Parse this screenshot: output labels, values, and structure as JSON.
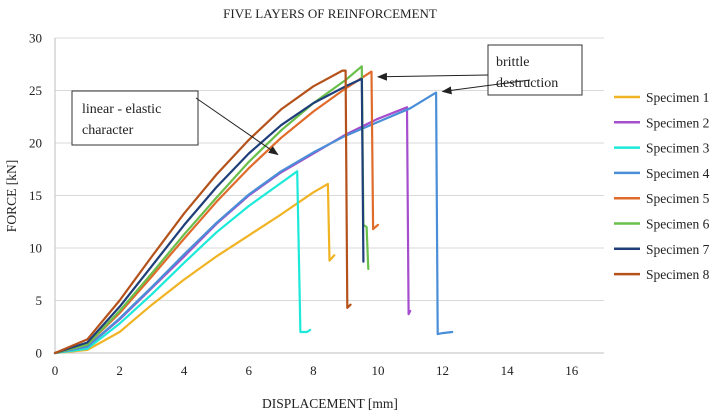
{
  "chart_data": {
    "type": "line",
    "title": "FIVE LAYERS OF REINFORCEMENT",
    "xlabel": "DISPLACEMENT  [mm]",
    "ylabel": "FORCE  [kN]",
    "xlim": [
      0,
      17
    ],
    "ylim": [
      0,
      30
    ],
    "xticks": [
      0,
      2,
      4,
      6,
      8,
      10,
      12,
      14,
      16
    ],
    "yticks": [
      0,
      5,
      10,
      15,
      20,
      25,
      30
    ],
    "grid": "horizontal",
    "legend_position": "right",
    "series": [
      {
        "name": "Specimen 1",
        "color": "#f0b323",
        "points": [
          [
            0,
            0
          ],
          [
            1,
            0.3
          ],
          [
            2,
            2
          ],
          [
            3,
            4.6
          ],
          [
            4,
            7
          ],
          [
            5,
            9.2
          ],
          [
            6,
            11.2
          ],
          [
            7,
            13.2
          ],
          [
            8,
            15.3
          ],
          [
            8.45,
            16.1
          ],
          [
            8.5,
            8.8
          ],
          [
            8.65,
            9.3
          ]
        ]
      },
      {
        "name": "Specimen 2",
        "color": "#a54dcc",
        "points": [
          [
            0,
            0
          ],
          [
            1,
            0.6
          ],
          [
            2,
            3.2
          ],
          [
            3,
            6.2
          ],
          [
            4,
            9.2
          ],
          [
            5,
            12.3
          ],
          [
            6,
            15
          ],
          [
            7,
            17.2
          ],
          [
            8,
            19
          ],
          [
            9,
            20.8
          ],
          [
            10,
            22.3
          ],
          [
            10.9,
            23.4
          ],
          [
            10.95,
            3.7
          ],
          [
            11,
            4
          ]
        ]
      },
      {
        "name": "Specimen 3",
        "color": "#1de9d9",
        "points": [
          [
            0,
            0
          ],
          [
            1,
            0.4
          ],
          [
            2,
            2.8
          ],
          [
            3,
            5.6
          ],
          [
            4,
            8.6
          ],
          [
            5,
            11.5
          ],
          [
            6,
            14
          ],
          [
            7,
            16.2
          ],
          [
            7.5,
            17.3
          ],
          [
            7.6,
            2
          ],
          [
            7.8,
            2
          ],
          [
            7.9,
            2.2
          ]
        ]
      },
      {
        "name": "Specimen 4",
        "color": "#4a8ed8",
        "points": [
          [
            0,
            0
          ],
          [
            1,
            0.6
          ],
          [
            2,
            3.3
          ],
          [
            3,
            6.3
          ],
          [
            4,
            9.4
          ],
          [
            5,
            12.4
          ],
          [
            6,
            15.1
          ],
          [
            7,
            17.3
          ],
          [
            8,
            19.1
          ],
          [
            9,
            20.7
          ],
          [
            10,
            22
          ],
          [
            11,
            23.3
          ],
          [
            11.8,
            24.8
          ],
          [
            11.85,
            1.8
          ],
          [
            12,
            1.9
          ],
          [
            12.3,
            2
          ]
        ]
      },
      {
        "name": "Specimen 5",
        "color": "#e06b2a",
        "points": [
          [
            0,
            0
          ],
          [
            1,
            0.8
          ],
          [
            2,
            3.8
          ],
          [
            3,
            7.3
          ],
          [
            4,
            10.9
          ],
          [
            5,
            14.4
          ],
          [
            6,
            17.6
          ],
          [
            7,
            20.5
          ],
          [
            8,
            23
          ],
          [
            9,
            25.2
          ],
          [
            9.8,
            26.8
          ],
          [
            9.85,
            11.8
          ],
          [
            10,
            12.2
          ]
        ]
      },
      {
        "name": "Specimen 6",
        "color": "#6abf4b",
        "points": [
          [
            0,
            0
          ],
          [
            1,
            0.8
          ],
          [
            2,
            4
          ],
          [
            3,
            7.6
          ],
          [
            4,
            11.3
          ],
          [
            5,
            14.8
          ],
          [
            6,
            18.2
          ],
          [
            7,
            21.2
          ],
          [
            8,
            23.8
          ],
          [
            9,
            26
          ],
          [
            9.5,
            27.3
          ],
          [
            9.55,
            12.2
          ],
          [
            9.65,
            12
          ],
          [
            9.7,
            8
          ]
        ]
      },
      {
        "name": "Specimen 7",
        "color": "#1f3f7a",
        "points": [
          [
            0,
            0
          ],
          [
            1,
            1
          ],
          [
            2,
            4.4
          ],
          [
            3,
            8.3
          ],
          [
            4,
            12.2
          ],
          [
            5,
            15.8
          ],
          [
            6,
            19
          ],
          [
            7,
            21.7
          ],
          [
            8,
            23.8
          ],
          [
            9,
            25.4
          ],
          [
            9.5,
            26.1
          ],
          [
            9.55,
            8.7
          ]
        ]
      },
      {
        "name": "Specimen 8",
        "color": "#b5521b",
        "points": [
          [
            0,
            0
          ],
          [
            1,
            1.3
          ],
          [
            2,
            5
          ],
          [
            3,
            9.2
          ],
          [
            4,
            13.3
          ],
          [
            5,
            17
          ],
          [
            6,
            20.3
          ],
          [
            7,
            23.2
          ],
          [
            8,
            25.4
          ],
          [
            8.9,
            26.9
          ],
          [
            9,
            26.9
          ],
          [
            9.05,
            4.3
          ],
          [
            9.15,
            4.6
          ]
        ]
      }
    ],
    "annotations": [
      {
        "id": "linear-elastic",
        "text_lines": [
          "linear - elastic",
          "character"
        ],
        "target": [
          6.9,
          18.9
        ]
      },
      {
        "id": "brittle",
        "text_lines": [
          "brittle",
          "destruction"
        ],
        "targets": [
          [
            10,
            26.3
          ],
          [
            12,
            24.9
          ]
        ]
      }
    ]
  }
}
